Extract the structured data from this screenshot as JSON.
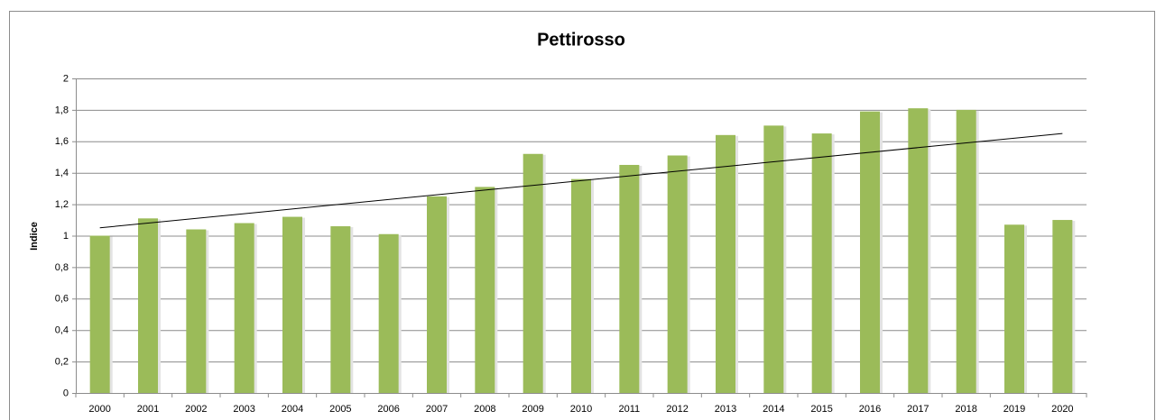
{
  "chart_data": {
    "type": "bar",
    "title": "Pettirosso",
    "y_label": "Indice",
    "categories": [
      "2000",
      "2001",
      "2002",
      "2003",
      "2004",
      "2005",
      "2006",
      "2007",
      "2008",
      "2009",
      "2010",
      "2011",
      "2012",
      "2013",
      "2014",
      "2015",
      "2016",
      "2017",
      "2018",
      "2019",
      "2020"
    ],
    "values": [
      1.0,
      1.11,
      1.04,
      1.08,
      1.12,
      1.06,
      1.01,
      1.25,
      1.31,
      1.52,
      1.36,
      1.45,
      1.51,
      1.64,
      1.7,
      1.65,
      1.79,
      1.81,
      1.8,
      1.07,
      1.1
    ],
    "color": "#9bbb59",
    "trendline": {
      "start": 1.05,
      "end": 1.65,
      "color": "#000000"
    },
    "ylim": [
      0,
      2
    ],
    "yticks": [
      0,
      {
        "value": 0.2,
        "label": "0,2"
      },
      {
        "value": 0.4,
        "label": "0,4"
      },
      {
        "value": 0.6,
        "label": "0,6"
      },
      {
        "value": 0.8,
        "label": "0,8"
      },
      1,
      {
        "value": 1.2,
        "label": "1,2"
      },
      {
        "value": 1.4,
        "label": "1,4"
      },
      {
        "value": 1.6,
        "label": "1,6"
      },
      {
        "value": 1.8,
        "label": "1,8"
      },
      2
    ],
    "grid": true
  }
}
